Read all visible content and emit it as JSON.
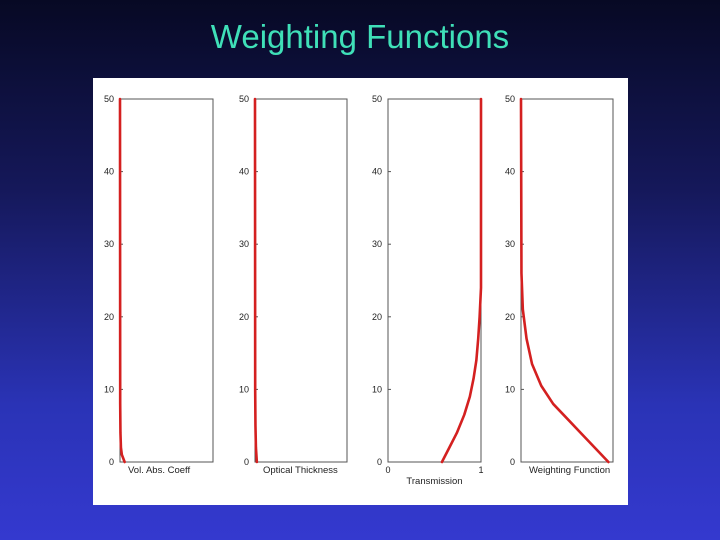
{
  "slide": {
    "title": "Weighting Functions"
  },
  "colors": {
    "title": "#3fe0b8",
    "curve": "#d42020",
    "axes": "#555555"
  },
  "chart_data": [
    {
      "type": "line",
      "xlabel": "Vol. Abs. Coeff",
      "ylim": [
        0,
        50
      ],
      "yticks": [
        "0",
        "10",
        "20",
        "30",
        "40",
        "50"
      ],
      "xticks": [],
      "xlim": [
        0,
        1
      ],
      "series": [
        {
          "x": [
            0.05,
            0.02,
            0.01,
            0.005,
            0.002,
            0.0
          ],
          "y": [
            0,
            1,
            2,
            4,
            8,
            50
          ]
        }
      ]
    },
    {
      "type": "line",
      "xlabel": "Optical Thickness",
      "ylim": [
        0,
        50
      ],
      "yticks": [
        "0",
        "10",
        "20",
        "30",
        "40",
        "50"
      ],
      "xticks": [],
      "xlim": [
        0,
        1
      ],
      "series": [
        {
          "x": [
            0.02,
            0.01,
            0.005,
            0.002,
            0.0
          ],
          "y": [
            0,
            2,
            5,
            10,
            50
          ]
        }
      ]
    },
    {
      "type": "line",
      "xlabel": "Transmission",
      "ylim": [
        0,
        50
      ],
      "yticks": [
        "0",
        "10",
        "20",
        "30",
        "40",
        "50"
      ],
      "xticks": [
        "0",
        "1"
      ],
      "xlim": [
        0,
        1
      ],
      "series": [
        {
          "x": [
            0.58,
            0.66,
            0.74,
            0.82,
            0.88,
            0.92,
            0.95,
            0.97,
            0.985,
            1.0,
            1.0
          ],
          "y": [
            0,
            2,
            4,
            6.5,
            9,
            11.5,
            14,
            17,
            20,
            24,
            50
          ]
        }
      ]
    },
    {
      "type": "line",
      "xlabel": "Weighting Function",
      "ylim": [
        0,
        50
      ],
      "yticks": [
        "0",
        "10",
        "20",
        "30",
        "40",
        "50"
      ],
      "xticks": [],
      "xlim": [
        0,
        1
      ],
      "series": [
        {
          "x": [
            0.95,
            0.8,
            0.65,
            0.5,
            0.35,
            0.22,
            0.12,
            0.06,
            0.02,
            0.005,
            0.0
          ],
          "y": [
            0,
            2,
            4,
            6,
            8,
            10.5,
            13.5,
            17,
            21,
            26,
            50
          ]
        }
      ]
    }
  ]
}
